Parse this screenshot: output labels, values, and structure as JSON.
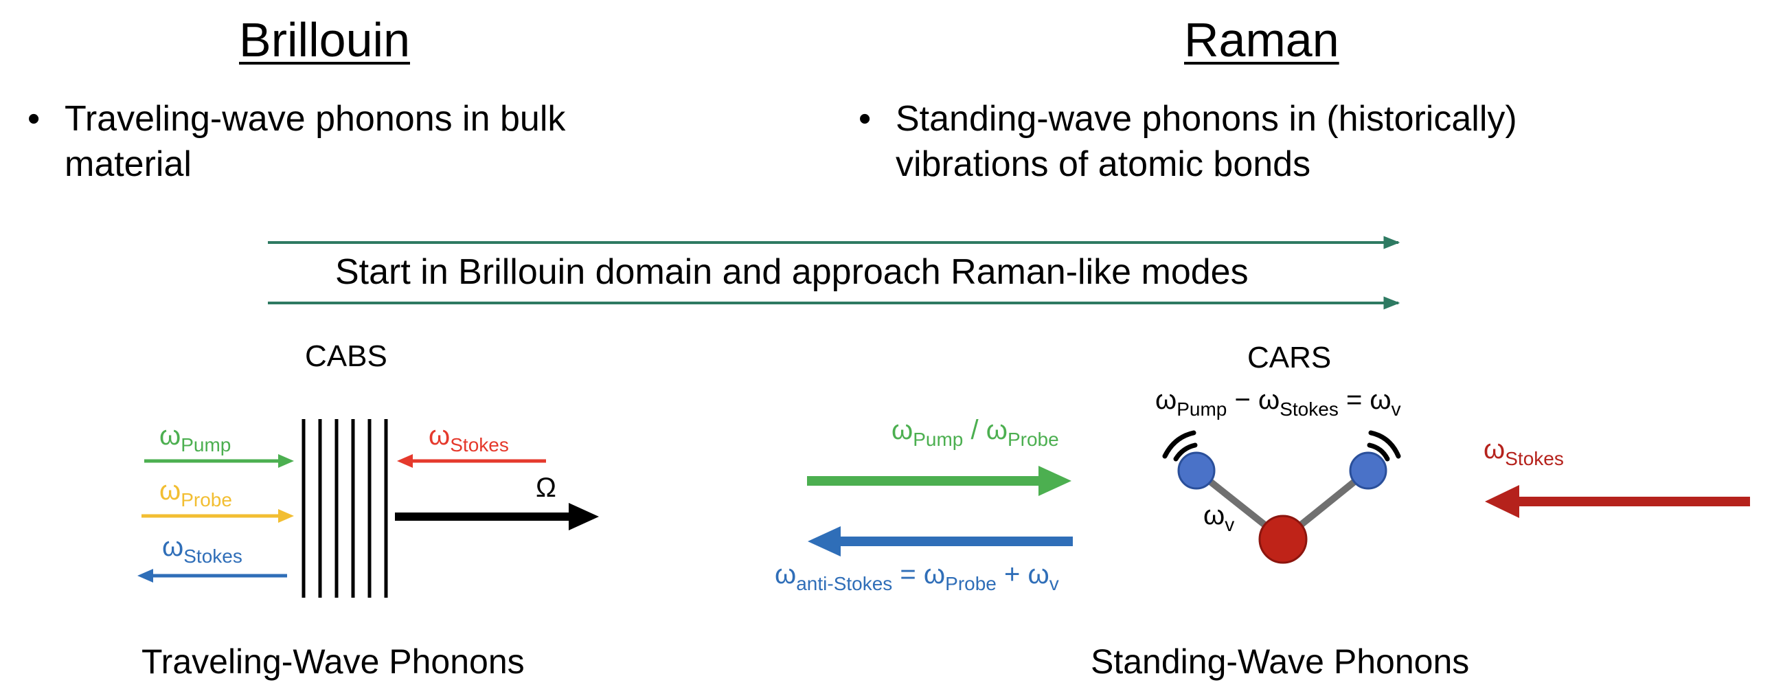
{
  "left": {
    "heading": "Brillouin",
    "bullet_line1": "Traveling-wave phonons in bulk",
    "bullet_line2": "material",
    "cabs_label": "CABS",
    "pump_symbol": "ω",
    "pump_sub": "Pump",
    "probe_symbol": "ω",
    "probe_sub": "Probe",
    "stokes_symbol": "ω",
    "stokes_sub": "Stokes",
    "stokes_in_symbol": "ω",
    "stokes_in_sub": "Stokes",
    "omega": "Ω",
    "caption": "Traveling-Wave Phonons"
  },
  "right": {
    "heading": "Raman",
    "bullet_line1": "Standing-wave phonons in (historically)",
    "bullet_line2": "vibrations of atomic bonds",
    "cars_label": "CARS",
    "eq_w1": "ω",
    "eq_s1": "Pump",
    "eq_minus": " − ",
    "eq_w2": "ω",
    "eq_s2": "Stokes",
    "eq_eq": " = ",
    "eq_w3": "ω",
    "eq_s3": "v",
    "pp_w1": "ω",
    "pp_s1": "Pump",
    "pp_sep": " / ",
    "pp_w2": "ω",
    "pp_s2": "Probe",
    "as_w1": "ω",
    "as_s1": "anti-Stokes",
    "as_eq": " = ",
    "as_w2": "ω",
    "as_s2": "Probe",
    "as_plus": " + ",
    "as_w3": "ω",
    "as_s3": "v",
    "bond_w": "ω",
    "bond_s": "v",
    "stokes_w": "ω",
    "stokes_s": "Stokes",
    "caption": "Standing-Wave Phonons"
  },
  "banner": "Start in Brillouin domain and approach Raman-like modes",
  "bullet_char": "•",
  "colors": {
    "green": "#4caf50",
    "yellow": "#f2be32",
    "blue": "#2f6eb8",
    "red": "#e5392c",
    "dark_red": "#b5221c",
    "teal": "#2e7a62",
    "atom_blue": "#4a72c8",
    "atom_red": "#bf2318",
    "bond": "#707070"
  }
}
